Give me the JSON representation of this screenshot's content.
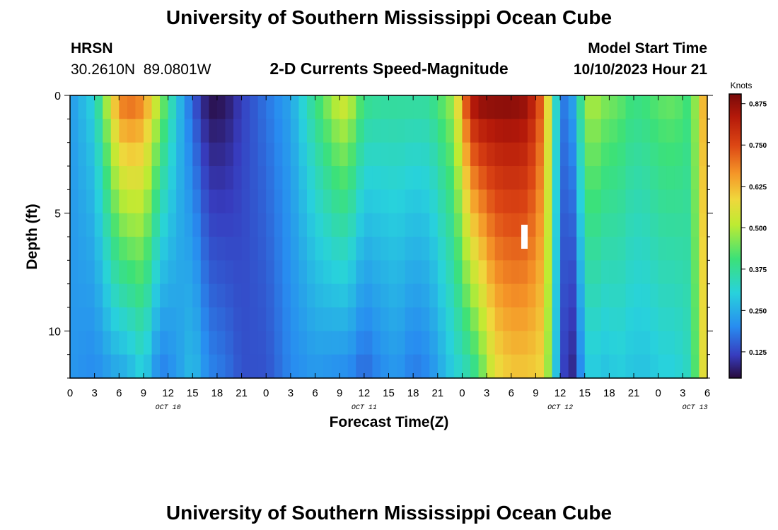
{
  "header": {
    "title": "University of Southern Mississippi Ocean Cube",
    "station": "HRSN",
    "coords": "30.2610N  89.0801W",
    "subtitle": "2-D Currents Speed-Magnitude",
    "model_label": "Model Start Time",
    "model_time": "10/10/2023 Hour 21"
  },
  "footer": {
    "title": "University of Southern Mississippi Ocean Cube"
  },
  "chart_data": {
    "type": "heatmap",
    "title": "2-D Currents Speed-Magnitude",
    "xlabel": "Forecast Time(Z)",
    "ylabel": "Depth (ft)",
    "x_tick_labels": [
      "0",
      "3",
      "6",
      "9",
      "12",
      "15",
      "18",
      "21",
      "0",
      "3",
      "6",
      "9",
      "12",
      "15",
      "18",
      "21",
      "0",
      "3",
      "6",
      "9",
      "12",
      "15",
      "18",
      "21",
      "0",
      "3",
      "6"
    ],
    "date_labels": [
      "OCT 10",
      "OCT 11",
      "OCT 12",
      "OCT 13"
    ],
    "y_tick_labels": [
      "0",
      "5",
      "10"
    ],
    "ylim": [
      0,
      12
    ],
    "y_inverted": true,
    "xlim_hours": [
      0,
      78
    ],
    "colorbar": {
      "label": "Knots",
      "ticks": [
        "0.125",
        "0.250",
        "0.375",
        "0.500",
        "0.625",
        "0.750",
        "0.875"
      ],
      "range": [
        0.05,
        0.9
      ],
      "colormap": "jet-like (dark blue → cyan → green → yellow → orange → dark red)"
    },
    "depth_rows_ft": [
      0.5,
      1.5,
      2.5,
      3.5,
      4.5,
      5.5,
      6.5,
      7.5,
      8.5,
      9.5,
      10.5,
      11.5
    ],
    "profile_hours": [
      0,
      3,
      6,
      7,
      8,
      9,
      11,
      13,
      15,
      16,
      17,
      19,
      21,
      24,
      27,
      30,
      33,
      34,
      36,
      38,
      40,
      42,
      44,
      47,
      49,
      50,
      51,
      52,
      54,
      56,
      58,
      60,
      61,
      62,
      63,
      64,
      65,
      66,
      67,
      69,
      71,
      72,
      74,
      76,
      77,
      78
    ],
    "speed_surface_knots": [
      0.22,
      0.32,
      0.7,
      0.74,
      0.72,
      0.7,
      0.5,
      0.3,
      0.15,
      0.1,
      0.05,
      0.06,
      0.12,
      0.18,
      0.24,
      0.4,
      0.55,
      0.55,
      0.4,
      0.38,
      0.38,
      0.38,
      0.38,
      0.5,
      0.85,
      0.9,
      0.9,
      0.9,
      0.9,
      0.88,
      0.7,
      0.2,
      0.18,
      0.3,
      0.48,
      0.52,
      0.48,
      0.46,
      0.45,
      0.4,
      0.42,
      0.44,
      0.45,
      0.4,
      0.55,
      0.7
    ],
    "speed_bottom_knots": [
      0.22,
      0.2,
      0.24,
      0.24,
      0.28,
      0.3,
      0.18,
      0.22,
      0.28,
      0.24,
      0.2,
      0.18,
      0.14,
      0.14,
      0.2,
      0.22,
      0.2,
      0.2,
      0.16,
      0.2,
      0.22,
      0.18,
      0.2,
      0.3,
      0.35,
      0.4,
      0.48,
      0.56,
      0.6,
      0.6,
      0.58,
      0.18,
      0.06,
      0.12,
      0.28,
      0.3,
      0.28,
      0.28,
      0.3,
      0.28,
      0.28,
      0.3,
      0.3,
      0.34,
      0.5,
      0.62
    ]
  }
}
